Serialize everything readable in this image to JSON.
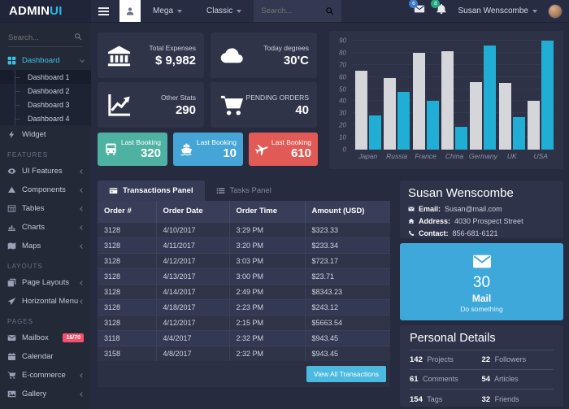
{
  "colors": {
    "accent": "#2eb8e6",
    "mail_card": "#3fa8db",
    "button": "#4cb9de",
    "badge_messages": "#4179c6",
    "badge_notifications": "#27a57e",
    "badge_mailbox": "#f4516c"
  },
  "topbar": {
    "logo_primary": "ADMIN",
    "logo_accent": "UI",
    "nav": [
      {
        "label": "Mega"
      },
      {
        "label": "Classic"
      }
    ],
    "search_placeholder": "Search...",
    "messages_badge": "6",
    "notifications_badge": "8",
    "user_name": "Susan Wenscombe"
  },
  "sidebar": {
    "search_placeholder": "Search...",
    "nav": [
      {
        "type": "item",
        "icon": "grid-icon",
        "label": "Dashboard",
        "chevron": "down",
        "accent": true
      },
      {
        "type": "subitem",
        "label": "Dashboard 1",
        "active": true
      },
      {
        "type": "subitem",
        "label": "Dashboard 2"
      },
      {
        "type": "subitem",
        "label": "Dashboard 3"
      },
      {
        "type": "subitem",
        "label": "Dashboard 4"
      },
      {
        "type": "item",
        "icon": "bolt-icon",
        "label": "Widget"
      },
      {
        "type": "section",
        "label": "FEATURES"
      },
      {
        "type": "item",
        "icon": "eye-icon",
        "label": "UI Features",
        "chevron": "left"
      },
      {
        "type": "item",
        "icon": "components-icon",
        "label": "Components",
        "chevron": "left"
      },
      {
        "type": "item",
        "icon": "table-icon",
        "label": "Tables",
        "chevron": "left"
      },
      {
        "type": "item",
        "icon": "bar-chart-icon",
        "label": "Charts",
        "chevron": "left"
      },
      {
        "type": "item",
        "icon": "map-icon",
        "label": "Maps",
        "chevron": "left"
      },
      {
        "type": "section",
        "label": "LAYOUTS"
      },
      {
        "type": "item",
        "icon": "layers-icon",
        "label": "Page Layouts",
        "chevron": "left"
      },
      {
        "type": "item",
        "icon": "send-icon",
        "label": "Horizontal Menu",
        "chevron": "left"
      },
      {
        "type": "section",
        "label": "PAGES"
      },
      {
        "type": "item",
        "icon": "mail-icon",
        "label": "Mailbox",
        "badge": "16/70"
      },
      {
        "type": "item",
        "icon": "calendar-icon",
        "label": "Calendar"
      },
      {
        "type": "item",
        "icon": "cart-icon",
        "label": "E-commerce",
        "chevron": "left"
      },
      {
        "type": "item",
        "icon": "image-icon",
        "label": "Gallery",
        "chevron": "left"
      }
    ]
  },
  "stats_cards": [
    {
      "icon": "bank-icon",
      "label": "Total Expenses",
      "value": "$ 9,982"
    },
    {
      "icon": "cloud-icon",
      "label": "Today degrees",
      "value": "30'C"
    },
    {
      "icon": "trend-icon",
      "label": "Other Stats",
      "value": "290"
    },
    {
      "icon": "cart-icon",
      "label": "PENDING ORDERS",
      "value": "40"
    }
  ],
  "booking_cards": [
    {
      "icon": "bus-icon",
      "label": "Last Booking",
      "value": "320",
      "color": "#4eb2a2"
    },
    {
      "icon": "ship-icon",
      "label": "Last Booking",
      "value": "10",
      "color": "#45a5d7"
    },
    {
      "icon": "plane-icon",
      "label": "Last Booking",
      "value": "610",
      "color": "#e15a55"
    }
  ],
  "chart_data": {
    "type": "bar",
    "categories": [
      "Japan",
      "Russia",
      "France",
      "China",
      "Germany",
      "UK",
      "USA"
    ],
    "series": [
      {
        "name": "gray",
        "color": "#d5d6d9",
        "values": [
          65,
          59,
          80,
          81,
          56,
          55,
          40
        ]
      },
      {
        "name": "cyan",
        "color": "#21aed5",
        "values": [
          28,
          48,
          40,
          19,
          86,
          27,
          90
        ]
      }
    ],
    "title": "",
    "xlabel": "",
    "ylabel": "",
    "ylim": [
      0,
      90
    ],
    "yticks": [
      0,
      10,
      20,
      30,
      40,
      50,
      60,
      70,
      80,
      90
    ],
    "grid": true,
    "legend": "none"
  },
  "tabs": [
    {
      "icon": "card-icon",
      "label": "Transactions Panel",
      "active": true
    },
    {
      "icon": "list-icon",
      "label": "Tasks Panel",
      "active": false
    }
  ],
  "transactions": {
    "headers": [
      "Order #",
      "Order Date",
      "Order Time",
      "Amount (USD)"
    ],
    "rows": [
      [
        "3128",
        "4/10/2017",
        "3:29 PM",
        "$323.33"
      ],
      [
        "3128",
        "4/11/2017",
        "3:20 PM",
        "$233.34"
      ],
      [
        "3128",
        "4/12/2017",
        "3:03 PM",
        "$723.17"
      ],
      [
        "3128",
        "4/13/2017",
        "3:00 PM",
        "$23.71"
      ],
      [
        "3128",
        "4/14/2017",
        "2:49 PM",
        "$8343.23"
      ],
      [
        "3128",
        "4/18/2017",
        "2:23 PM",
        "$243.12"
      ],
      [
        "3128",
        "4/12/2017",
        "2:15 PM",
        "$5663.54"
      ],
      [
        "3118",
        "4/4/2017",
        "2:32 PM",
        "$943.45"
      ],
      [
        "3158",
        "4/8/2017",
        "2:32 PM",
        "$943.45"
      ]
    ],
    "button_label": "View All Transactions"
  },
  "profile": {
    "name": "Susan Wenscombe",
    "rows": [
      {
        "icon": "mail-icon",
        "label": "Email:",
        "value": "Susan@mail.com"
      },
      {
        "icon": "home-icon",
        "label": "Address:",
        "value": "4030 Prospect Street"
      },
      {
        "icon": "phone-icon",
        "label": "Contact:",
        "value": "856-681-6121"
      }
    ]
  },
  "mail_card": {
    "icon": "mail-icon",
    "value": "30",
    "title": "Mail",
    "subtitle": "Do something"
  },
  "personal_details": {
    "title": "Personal Details",
    "stats": [
      {
        "value": "142",
        "label": "Projects"
      },
      {
        "value": "22",
        "label": "Followers"
      },
      {
        "value": "61",
        "label": "Comments"
      },
      {
        "value": "54",
        "label": "Articles"
      },
      {
        "value": "154",
        "label": "Tags"
      },
      {
        "value": "32",
        "label": "Friends"
      }
    ]
  }
}
